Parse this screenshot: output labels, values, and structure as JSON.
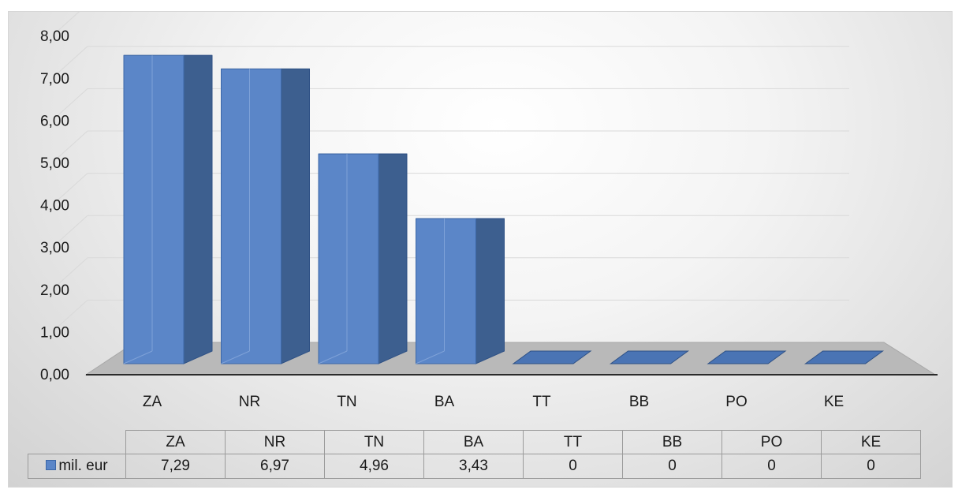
{
  "chart_data": {
    "type": "bar",
    "three_d": true,
    "categories": [
      "ZA",
      "NR",
      "TN",
      "BA",
      "TT",
      "BB",
      "PO",
      "KE"
    ],
    "series": [
      {
        "name": "mil. eur",
        "values": [
          7.29,
          6.97,
          4.96,
          3.43,
          0,
          0,
          0,
          0
        ]
      }
    ],
    "ylim": [
      0,
      8
    ],
    "y_ticks": [
      "0,00",
      "1,00",
      "2,00",
      "3,00",
      "4,00",
      "5,00",
      "6,00",
      "7,00",
      "8,00"
    ],
    "grid": true,
    "data_table": {
      "header": [
        "ZA",
        "NR",
        "TN",
        "BA",
        "TT",
        "BB",
        "PO",
        "KE"
      ],
      "row_label": "mil. eur",
      "cells": [
        "7,29",
        "6,97",
        "4,96",
        "3,43",
        "0",
        "0",
        "0",
        "0"
      ]
    },
    "colors": {
      "bar_front": "#5b86c8",
      "bar_side": "#3d5f8f",
      "bar_top": "#4a74b4",
      "floor": "#b9b9b9",
      "grid": "#d9d9d9"
    }
  }
}
